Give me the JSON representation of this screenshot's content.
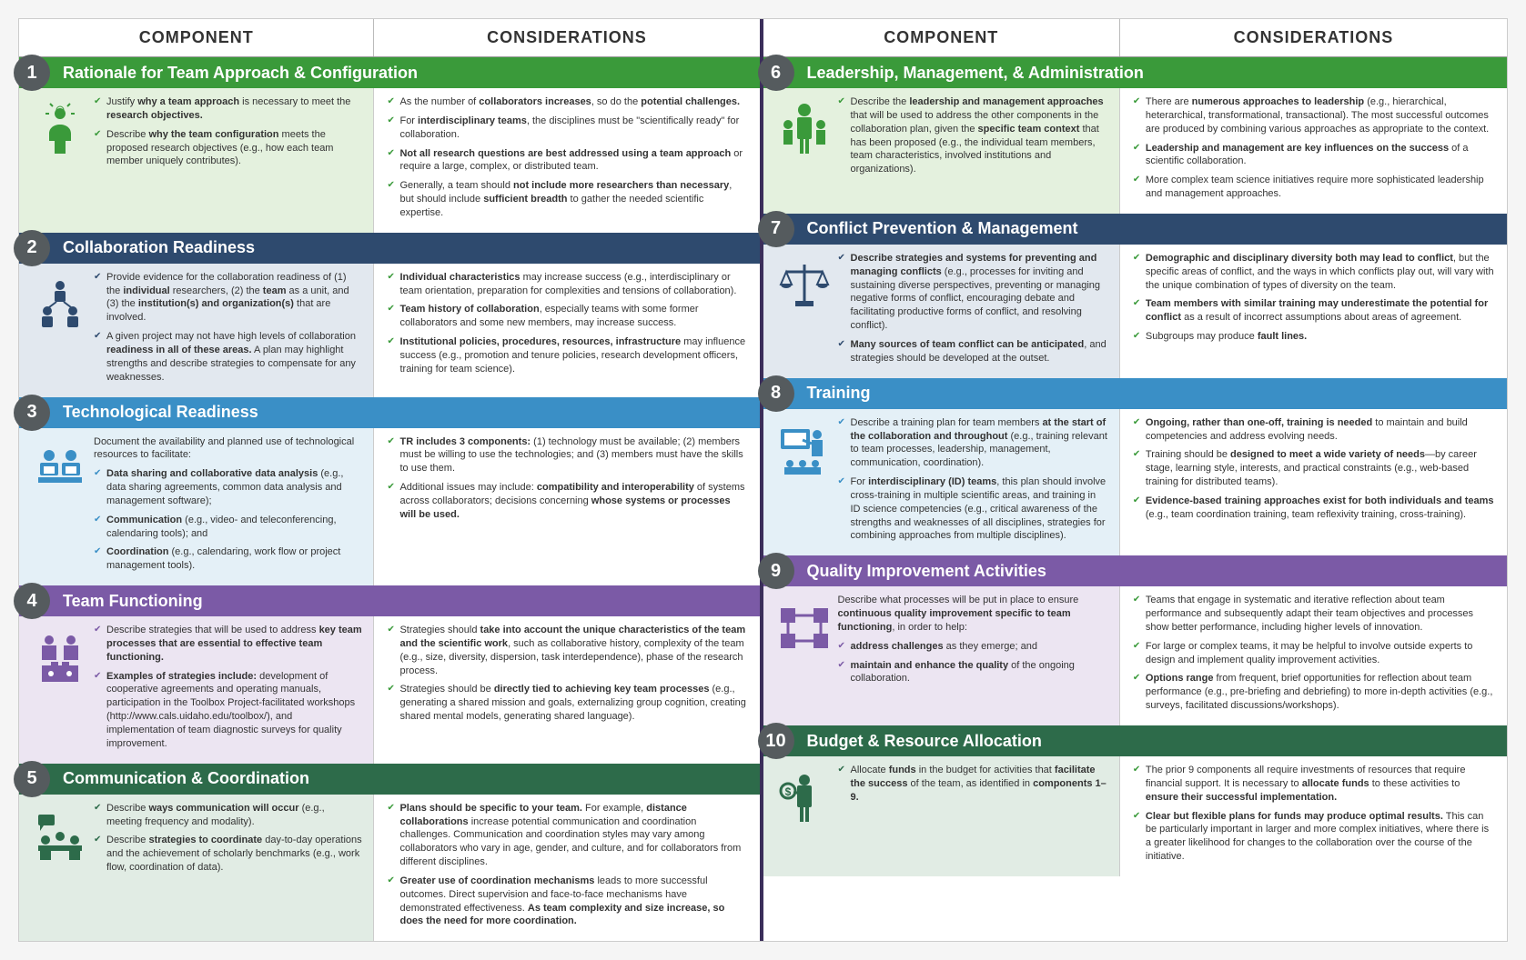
{
  "headers": {
    "component": "COMPONENT",
    "considerations": "CONSIDERATIONS"
  },
  "colors": {
    "green": "#3a9a3a",
    "navy": "#2e4a6e",
    "blue": "#3a8fc6",
    "purple": "#7b5aa6",
    "dgreen": "#2d6b4a",
    "circle": "#555b5e"
  },
  "sections": [
    {
      "num": "1",
      "title": "Rationale for Team Approach & Configuration",
      "color": "green",
      "icon": "idea-person",
      "component": [
        "Justify <b>why a team approach</b> is necessary to meet the <b>research objectives.</b>",
        "Describe <b>why the team configuration</b> meets the proposed research objectives (e.g., how each team member uniquely contributes)."
      ],
      "considerations": [
        "As the number of <b>collaborators increases</b>, so do the <b>potential challenges.</b>",
        "For <b>interdisciplinary teams</b>, the disciplines must be \"scientifically ready\" for collaboration.",
        "<b>Not all research questions are best addressed using a team approach</b> or require a large, complex, or distributed team.",
        "Generally, a team should <b>not include more researchers than necessary</b>, but should include <b>sufficient breadth</b> to gather the needed scientific expertise."
      ]
    },
    {
      "num": "2",
      "title": "Collaboration Readiness",
      "color": "navy",
      "icon": "people-pyramid",
      "component": [
        "Provide evidence for the collaboration readiness of (1) the <b>individual</b> researchers, (2) the <b>team</b> as a unit, and (3) the <b>institution(s) and organization(s)</b> that are involved.",
        "A given project may not have high levels of collaboration <b>readiness in all of these areas.</b> A plan may highlight strengths and describe strategies to compensate for any weaknesses."
      ],
      "considerations": [
        "<b>Individual characteristics</b> may increase success (e.g., interdisciplinary or team orientation, preparation for complexities and tensions of collaboration).",
        "<b>Team history of collaboration</b>, especially teams with some former collaborators and some new members, may increase success.",
        "<b>Institutional policies, procedures, resources, infrastructure</b> may influence success (e.g., promotion and tenure policies, research development officers, training for team science)."
      ]
    },
    {
      "num": "3",
      "title": "Technological Readiness",
      "color": "blue",
      "icon": "people-laptops",
      "component_intro": "Document the availability and planned use of technological resources to facilitate:",
      "component": [
        "<b>Data sharing and collaborative data analysis</b> (e.g., data sharing agreements, common data analysis and management software);",
        "<b>Communication</b> (e.g., video- and teleconferencing, calendaring tools); and",
        "<b>Coordination</b> (e.g., calendaring, work flow or project management tools)."
      ],
      "considerations": [
        "<b>TR includes 3 components:</b> (1) technology must be available; (2) members must be willing to use the technologies; and (3) members must have the skills to use them.",
        "Additional issues may include: <b>compatibility and interoperability</b> of systems across collaborators; decisions concerning <b>whose systems or processes will be used.</b>"
      ]
    },
    {
      "num": "4",
      "title": "Team Functioning",
      "color": "purple",
      "icon": "puzzle",
      "component": [
        "Describe strategies that will be used to address <b>key team processes that are essential to effective team functioning.</b>",
        "<b>Examples of strategies include:</b> development of cooperative agreements and operating manuals, participation in the Toolbox Project-facilitated workshops (http://www.cals.uidaho.edu/toolbox/), and implementation of team diagnostic surveys for quality improvement."
      ],
      "considerations": [
        "Strategies should <b>take into account the unique characteristics of the team and the scientific work</b>, such as collaborative history, complexity of the team (e.g., size, diversity, dispersion, task interdependence), phase of the research process.",
        "Strategies should be <b>directly tied to achieving key team processes</b> (e.g., generating a shared mission and goals, externalizing group cognition, creating shared mental models, generating shared language)."
      ]
    },
    {
      "num": "5",
      "title": "Communication & Coordination",
      "color": "dgreen",
      "icon": "meeting",
      "component": [
        "Describe <b>ways communication will occur</b> (e.g., meeting frequency and modality).",
        "Describe <b>strategies to coordinate</b> day-to-day operations and the achievement of scholarly benchmarks (e.g., work flow, coordination of data)."
      ],
      "considerations": [
        "<b>Plans should be specific to your team.</b> For example, <b>distance collaborations</b> increase potential communication and coordination challenges. Communication and coordination styles may vary among collaborators who vary in age, gender, and culture, and for collaborators from different disciplines.",
        "<b>Greater use of coordination mechanisms</b> leads to more successful outcomes. Direct supervision and face-to-face mechanisms have demonstrated effectiveness. <b>As team complexity and size increase, so does the need for more coordination.</b>"
      ]
    },
    {
      "num": "6",
      "title": "Leadership, Management, & Administration",
      "color": "green",
      "icon": "leader",
      "component": [
        "Describe the <b>leadership and management approaches</b> that will be used to address the other components in the collaboration plan, given the <b>specific team context</b> that has been proposed (e.g., the individual team members, team characteristics, involved institutions and organizations)."
      ],
      "considerations": [
        "There are <b>numerous approaches to leadership</b> (e.g., hierarchical, heterarchical, transformational, transactional). The most successful outcomes are produced by combining various approaches as appropriate to the context.",
        "<b>Leadership and management are key influences on the success</b> of a scientific collaboration.",
        "More complex team science initiatives require more sophisticated leadership and management approaches."
      ]
    },
    {
      "num": "7",
      "title": "Conflict Prevention & Management",
      "color": "navy",
      "icon": "scales",
      "component": [
        "<b>Describe strategies and systems for preventing and managing conflicts</b> (e.g., processes for inviting and sustaining diverse perspectives, preventing or managing negative forms of conflict, encouraging debate and facilitating productive forms of conflict, and resolving conflict).",
        "<b>Many sources of team conflict can be anticipated</b>, and strategies should be developed at the outset."
      ],
      "considerations": [
        "<b>Demographic and disciplinary diversity both may lead to conflict</b>, but the specific areas of conflict, and the ways in which conflicts play out, will vary with the unique combination of types of diversity on the team.",
        "<b>Team members with similar training may underestimate the potential for conflict</b> as a result of incorrect assumptions about areas of agreement.",
        "Subgroups may produce <b>fault lines.</b>"
      ]
    },
    {
      "num": "8",
      "title": "Training",
      "color": "blue",
      "icon": "training",
      "component": [
        "Describe a training plan for team members <b>at the start of the collaboration and throughout</b> (e.g., training relevant to team processes, leadership, management, communication, coordination).",
        "For <b>interdisciplinary (ID) teams</b>, this plan should involve cross-training in multiple scientific areas, and training in ID science competencies (e.g., critical awareness of the strengths and weaknesses of all disciplines, strategies for combining approaches from multiple disciplines)."
      ],
      "considerations": [
        "<b>Ongoing, rather than one-off, training is needed</b> to maintain and build competencies and address evolving needs.",
        "Training should be <b>designed to meet a wide variety of needs</b>—by career stage, learning style, interests, and practical constraints (e.g., web-based training for distributed teams).",
        "<b>Evidence-based training approaches exist for both individuals and teams</b> (e.g., team coordination training, team reflexivity training, cross-training)."
      ]
    },
    {
      "num": "9",
      "title": "Quality Improvement Activities",
      "color": "purple",
      "icon": "quality",
      "component_intro": "Describe what processes will be put in place to ensure <b>continuous quality improvement specific to team functioning</b>, in order to help:",
      "component": [
        "<b>address challenges</b> as they emerge; and",
        "<b>maintain and enhance the quality</b> of the ongoing collaboration."
      ],
      "considerations": [
        "Teams that engage in systematic and iterative reflection about team performance and subsequently adapt their team objectives and processes show better performance, including higher levels of innovation.",
        "For large or complex teams, it may be helpful to involve outside experts to design and implement quality improvement activities.",
        "<b>Options range</b> from frequent, brief opportunities for reflection about team performance (e.g., pre-briefing and debriefing) to more in-depth activities (e.g., surveys, facilitated discussions/workshops)."
      ]
    },
    {
      "num": "10",
      "title": "Budget & Resource Allocation",
      "color": "dgreen",
      "icon": "budget",
      "component": [
        "Allocate <b>funds</b> in the budget for activities that <b>facilitate the success</b> of the team, as identified in <b>components 1–9.</b>"
      ],
      "considerations": [
        "The prior 9 components all require investments of resources that require financial support. It is necessary to <b>allocate funds</b> to these activities to <b>ensure their successful implementation.</b>",
        "<b>Clear but flexible plans for funds may produce optimal results.</b> This can be particularly important in larger and more complex initiatives, where there is a greater likelihood for changes to the collaboration over the course of the initiative."
      ]
    }
  ]
}
